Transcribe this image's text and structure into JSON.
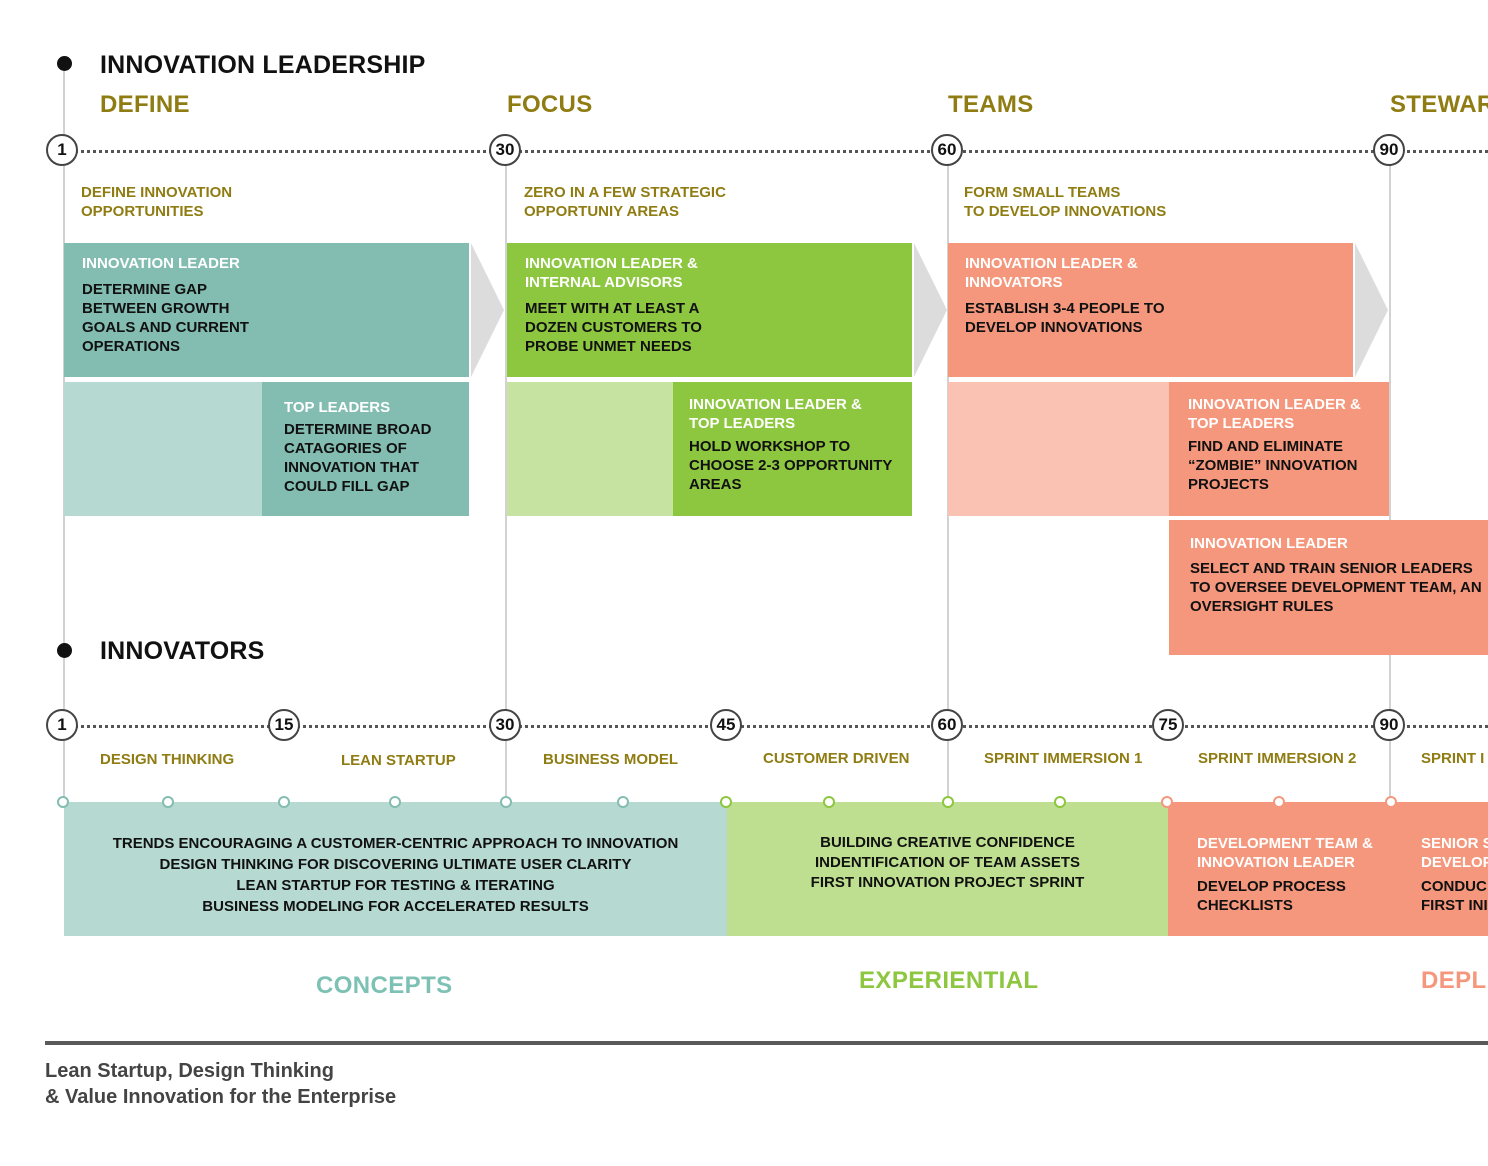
{
  "sections": {
    "leadership": "INNOVATION LEADERSHIP",
    "innovators": "INNOVATORS"
  },
  "phases": [
    "DEFINE",
    "FOCUS",
    "TEAMS",
    "STEWAR"
  ],
  "top_markers": [
    "1",
    "30",
    "60",
    "90"
  ],
  "subtitles": [
    [
      "DEFINE INNOVATION",
      "OPPORTUNITIES"
    ],
    [
      "ZERO IN A FEW STRATEGIC",
      "OPPORTUNIY AREAS"
    ],
    [
      "FORM SMALL TEAMS",
      "TO DEVELOP INNOVATIONS"
    ]
  ],
  "boxes": {
    "define_main": {
      "role": "INNOVATION LEADER",
      "task": [
        "DETERMINE GAP",
        "BETWEEN GROWTH",
        "GOALS AND CURRENT",
        "OPERATIONS"
      ]
    },
    "define_sub": {
      "role": "TOP LEADERS",
      "task": [
        "DETERMINE BROAD",
        "CATAGORIES OF",
        "INNOVATION THAT",
        "COULD FILL GAP"
      ]
    },
    "focus_main": {
      "role": [
        "INNOVATION LEADER &",
        "INTERNAL ADVISORS"
      ],
      "task": [
        "MEET WITH AT LEAST A",
        "DOZEN CUSTOMERS TO",
        "PROBE UNMET NEEDS"
      ]
    },
    "focus_sub": {
      "role": [
        "INNOVATION LEADER &",
        "TOP LEADERS"
      ],
      "task": [
        "HOLD WORKSHOP TO",
        "CHOOSE 2-3 OPPORTUNITY",
        "AREAS"
      ]
    },
    "teams_main": {
      "role": [
        "INNOVATION LEADER &",
        "INNOVATORS"
      ],
      "task": [
        "ESTABLISH 3-4 PEOPLE TO",
        "DEVELOP INNOVATIONS"
      ]
    },
    "teams_sub": {
      "role": [
        "INNOVATION LEADER &",
        "TOP LEADERS"
      ],
      "task": [
        "FIND AND ELIMINATE",
        "“ZOMBIE” INNOVATION",
        "PROJECTS"
      ]
    },
    "teams_sub2": {
      "role": "INNOVATION LEADER",
      "task": [
        "SELECT AND TRAIN SENIOR LEADERS",
        "TO OVERSEE DEVELOPMENT TEAM, AN",
        "OVERSIGHT RULES"
      ]
    }
  },
  "bottom_markers": [
    "1",
    "15",
    "30",
    "45",
    "60",
    "75",
    "90"
  ],
  "track_labels": [
    "DESIGN THINKING",
    "LEAN STARTUP",
    "BUSINESS MODEL",
    "CUSTOMER DRIVEN",
    "SPRINT IMMERSION 1",
    "SPRINT IMMERSION 2",
    "SPRINT I"
  ],
  "bands": {
    "concepts": {
      "lines": [
        "TRENDS ENCOURAGING A CUSTOMER-CENTRIC APPROACH TO INNOVATION",
        "DESIGN THINKING FOR DISCOVERING ULTIMATE USER CLARITY",
        "LEAN STARTUP FOR TESTING & ITERATING",
        "BUSINESS MODELING FOR ACCELERATED RESULTS"
      ],
      "label": "CONCEPTS"
    },
    "experiential": {
      "lines": [
        "BUILDING CREATIVE CONFIDENCE",
        "INDENTIFICATION OF TEAM ASSETS",
        "FIRST INNOVATION PROJECT SPRINT"
      ],
      "label": "EXPERIENTIAL"
    },
    "deploy": {
      "col1": {
        "role": [
          "DEVELOPMENT TEAM &",
          "INNOVATION LEADER"
        ],
        "task": [
          "DEVELOP PROCESS",
          "CHECKLISTS"
        ]
      },
      "col2": {
        "role": [
          "SENIOR S",
          "DEVELOP"
        ],
        "task": [
          "CONDUC",
          "FIRST INI"
        ]
      },
      "label": "DEPL"
    }
  },
  "footer": [
    "Lean Startup, Design Thinking",
    "& Value Innovation for the Enterprise"
  ],
  "colors": {
    "teal": "#83bdb1",
    "teal_light": "#b6d9d2",
    "green": "#8dc63f",
    "green_light": "#c7e3a1",
    "green_band": "#bedf8f",
    "salmon": "#f5977c",
    "salmon_light": "#f9c2b2",
    "olive": "#8f7c12",
    "concepts_label": "#7cc1b4",
    "experiential_label": "#8dc63f",
    "deploy_label": "#f5977c"
  }
}
